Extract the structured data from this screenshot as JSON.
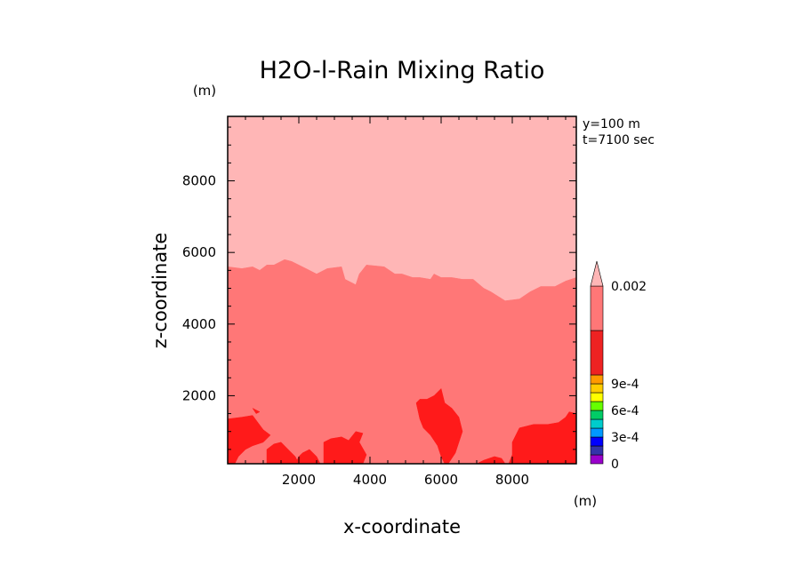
{
  "chart_data": {
    "type": "heatmap",
    "title": "H2O-l-Rain Mixing Ratio",
    "xlabel": "x-coordinate",
    "ylabel": "z-coordinate",
    "x_unit": "(m)",
    "y_unit": "(m)",
    "annotations": [
      "y=100 m",
      "t=7100 sec"
    ],
    "xlim": [
      0,
      9800
    ],
    "ylim": [
      100,
      9800
    ],
    "xticks": [
      2000,
      4000,
      6000,
      8000
    ],
    "yticks": [
      2000,
      4000,
      6000,
      8000
    ],
    "x_tick_labels": [
      "2000",
      "4000",
      "6000",
      "8000"
    ],
    "y_tick_labels": [
      "2000",
      "4000",
      "6000",
      "8000"
    ],
    "colorbar": {
      "levels": [
        0,
        0.0001,
        0.0002,
        0.0003,
        0.0004,
        0.0005,
        0.0006,
        0.0007,
        0.0008,
        0.0009,
        0.001,
        0.0015,
        0.002
      ],
      "colors": [
        "#9900cc",
        "#3333aa",
        "#0000ff",
        "#0099ff",
        "#00cccc",
        "#00cc66",
        "#66ff00",
        "#ffff00",
        "#ffcc00",
        "#ff9900",
        "#ee2222",
        "#ff7777",
        "#ffb6b6"
      ],
      "labels": [
        {
          "text": "0",
          "value": 0
        },
        {
          "text": "3e-4",
          "value": 0.0003
        },
        {
          "text": "6e-4",
          "value": 0.0006
        },
        {
          "text": "9e-4",
          "value": 0.0009
        },
        {
          "text": "0.002",
          "value": 0.002
        }
      ],
      "extend": "max"
    },
    "regions": [
      {
        "name": "upper",
        "color": "#ffb6b6",
        "polygon": [
          [
            0,
            9800
          ],
          [
            9800,
            9800
          ],
          [
            9800,
            5300
          ],
          [
            9500,
            5200
          ],
          [
            9200,
            5050
          ],
          [
            8800,
            5050
          ],
          [
            8500,
            4900
          ],
          [
            8200,
            4700
          ],
          [
            7800,
            4650
          ],
          [
            7400,
            4900
          ],
          [
            7200,
            5000
          ],
          [
            6900,
            5250
          ],
          [
            6600,
            5250
          ],
          [
            6300,
            5300
          ],
          [
            6000,
            5300
          ],
          [
            5800,
            5400
          ],
          [
            5700,
            5250
          ],
          [
            5400,
            5300
          ],
          [
            5200,
            5300
          ],
          [
            4900,
            5400
          ],
          [
            4700,
            5400
          ],
          [
            4400,
            5600
          ],
          [
            3900,
            5650
          ],
          [
            3700,
            5400
          ],
          [
            3600,
            5100
          ],
          [
            3300,
            5250
          ],
          [
            3200,
            5600
          ],
          [
            2800,
            5550
          ],
          [
            2500,
            5400
          ],
          [
            2200,
            5550
          ],
          [
            1800,
            5750
          ],
          [
            1600,
            5800
          ],
          [
            1300,
            5650
          ],
          [
            1100,
            5650
          ],
          [
            900,
            5500
          ],
          [
            700,
            5600
          ],
          [
            400,
            5550
          ],
          [
            0,
            5600
          ]
        ]
      },
      {
        "name": "middle",
        "color": "#ff7777",
        "polygon": [
          [
            0,
            5600
          ],
          [
            400,
            5550
          ],
          [
            700,
            5600
          ],
          [
            900,
            5500
          ],
          [
            1100,
            5650
          ],
          [
            1300,
            5650
          ],
          [
            1600,
            5800
          ],
          [
            1800,
            5750
          ],
          [
            2200,
            5550
          ],
          [
            2500,
            5400
          ],
          [
            2800,
            5550
          ],
          [
            3200,
            5600
          ],
          [
            3300,
            5250
          ],
          [
            3600,
            5100
          ],
          [
            3700,
            5400
          ],
          [
            3900,
            5650
          ],
          [
            4400,
            5600
          ],
          [
            4700,
            5400
          ],
          [
            4900,
            5400
          ],
          [
            5200,
            5300
          ],
          [
            5400,
            5300
          ],
          [
            5700,
            5250
          ],
          [
            5800,
            5400
          ],
          [
            6000,
            5300
          ],
          [
            6300,
            5300
          ],
          [
            6600,
            5250
          ],
          [
            6900,
            5250
          ],
          [
            7200,
            5000
          ],
          [
            7400,
            4900
          ],
          [
            7800,
            4650
          ],
          [
            8200,
            4700
          ],
          [
            8500,
            4900
          ],
          [
            8800,
            5050
          ],
          [
            9200,
            5050
          ],
          [
            9500,
            5200
          ],
          [
            9800,
            5300
          ],
          [
            9800,
            100
          ],
          [
            0,
            100
          ]
        ]
      },
      {
        "name": "left-low",
        "color": "#ff1a1a",
        "polygon": [
          [
            0,
            100
          ],
          [
            0,
            1350
          ],
          [
            400,
            1400
          ],
          [
            700,
            1450
          ],
          [
            1000,
            1050
          ],
          [
            1200,
            900
          ],
          [
            1000,
            700
          ],
          [
            700,
            600
          ],
          [
            500,
            500
          ],
          [
            300,
            300
          ],
          [
            200,
            100
          ]
        ]
      },
      {
        "name": "left-small",
        "color": "#ff1a1a",
        "polygon": [
          [
            700,
            1650
          ],
          [
            900,
            1550
          ],
          [
            800,
            1500
          ]
        ]
      },
      {
        "name": "left-mid",
        "color": "#ff1a1a",
        "polygon": [
          [
            1100,
            100
          ],
          [
            1100,
            500
          ],
          [
            1300,
            650
          ],
          [
            1500,
            700
          ],
          [
            1700,
            500
          ],
          [
            1900,
            300
          ],
          [
            2000,
            100
          ]
        ]
      },
      {
        "name": "center-left",
        "color": "#ff1a1a",
        "polygon": [
          [
            1900,
            100
          ],
          [
            2000,
            300
          ],
          [
            2100,
            400
          ],
          [
            2300,
            500
          ],
          [
            2500,
            300
          ],
          [
            2600,
            100
          ]
        ]
      },
      {
        "name": "center-cell",
        "color": "#ff1a1a",
        "polygon": [
          [
            2700,
            100
          ],
          [
            2700,
            700
          ],
          [
            2900,
            800
          ],
          [
            3200,
            850
          ],
          [
            3400,
            750
          ],
          [
            3600,
            1000
          ],
          [
            3800,
            950
          ],
          [
            3700,
            700
          ],
          [
            3900,
            350
          ],
          [
            3800,
            100
          ]
        ]
      },
      {
        "name": "right-cell",
        "color": "#ff1a1a",
        "polygon": [
          [
            5300,
            1800
          ],
          [
            5400,
            1900
          ],
          [
            5600,
            1900
          ],
          [
            5800,
            2000
          ],
          [
            6000,
            2200
          ],
          [
            6100,
            1800
          ],
          [
            6300,
            1650
          ],
          [
            6500,
            1400
          ],
          [
            6600,
            1000
          ],
          [
            6500,
            700
          ],
          [
            6400,
            400
          ],
          [
            6200,
            100
          ],
          [
            6100,
            100
          ],
          [
            6000,
            300
          ],
          [
            5900,
            600
          ],
          [
            5700,
            900
          ],
          [
            5500,
            1100
          ],
          [
            5400,
            1350
          ]
        ]
      },
      {
        "name": "right-low",
        "color": "#ff1a1a",
        "polygon": [
          [
            7800,
            100
          ],
          [
            7700,
            250
          ],
          [
            7500,
            300
          ],
          [
            7200,
            200
          ],
          [
            7000,
            100
          ]
        ]
      },
      {
        "name": "far-right",
        "color": "#ff1a1a",
        "polygon": [
          [
            7900,
            100
          ],
          [
            8000,
            350
          ],
          [
            8000,
            700
          ],
          [
            8200,
            1100
          ],
          [
            8600,
            1200
          ],
          [
            9000,
            1200
          ],
          [
            9300,
            1250
          ],
          [
            9500,
            1400
          ],
          [
            9600,
            1550
          ],
          [
            9800,
            1500
          ],
          [
            9800,
            100
          ]
        ]
      }
    ]
  }
}
